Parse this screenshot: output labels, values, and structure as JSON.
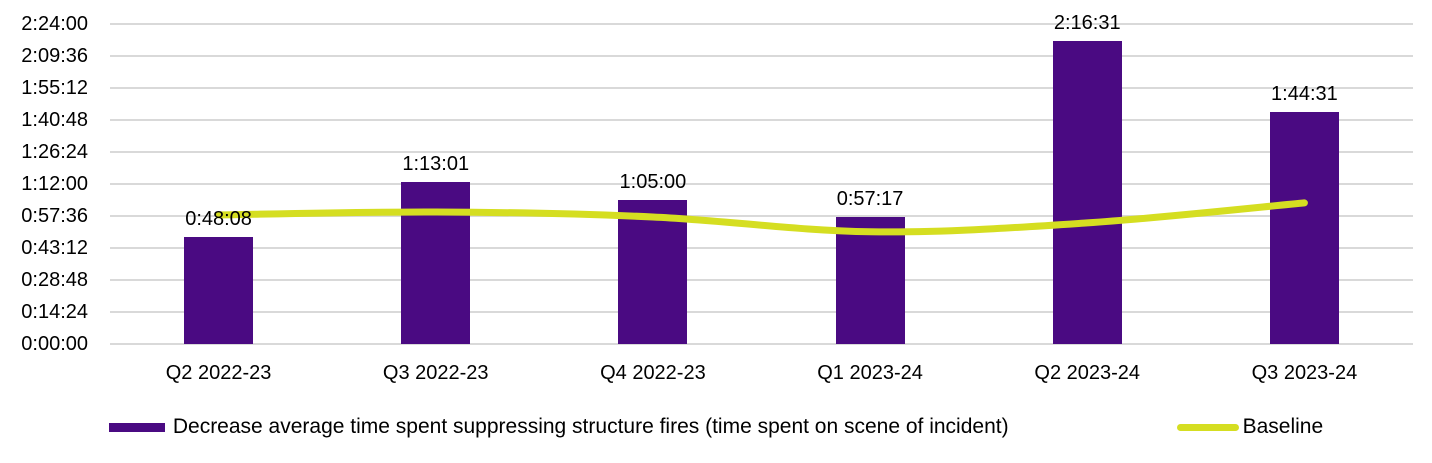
{
  "chart_data": {
    "type": "bar",
    "title": "",
    "categories": [
      "Q2 2022-23",
      "Q3 2022-23",
      "Q4 2022-23",
      "Q1 2023-24",
      "Q2 2023-24",
      "Q3 2023-24"
    ],
    "series": [
      {
        "name": "Decrease average time spent suppressing structure fires (time spent on scene of incident)",
        "type": "bar",
        "color": "#4A0A82",
        "values": [
          "0:48:08",
          "1:13:01",
          "1:05:00",
          "0:57:17",
          "2:16:31",
          "1:44:31"
        ],
        "data_labels_shown": true
      },
      {
        "name": "Baseline",
        "type": "line",
        "smooth": true,
        "color": "#D5DE21",
        "values": [
          "0:58:05",
          "0:59:25",
          "0:57:10",
          "0:50:30",
          "0:54:30",
          "1:03:30"
        ]
      }
    ],
    "y_axis": {
      "format": "h:mm:ss",
      "min": "0:00:00",
      "max": "2:24:00",
      "tick_interval": "0:14:24",
      "ticks_top_to_bottom": [
        "2:24:00",
        "2:09:36",
        "1:55:12",
        "1:40:48",
        "1:26:24",
        "1:12:00",
        "0:57:36",
        "0:43:12",
        "0:28:48",
        "0:14:24",
        "0:00:00"
      ]
    },
    "grid": true,
    "gridline_color": "#D9D9D9",
    "legend_position": "bottom",
    "background_color": "#FFFFFF",
    "text_color": "#000000"
  }
}
